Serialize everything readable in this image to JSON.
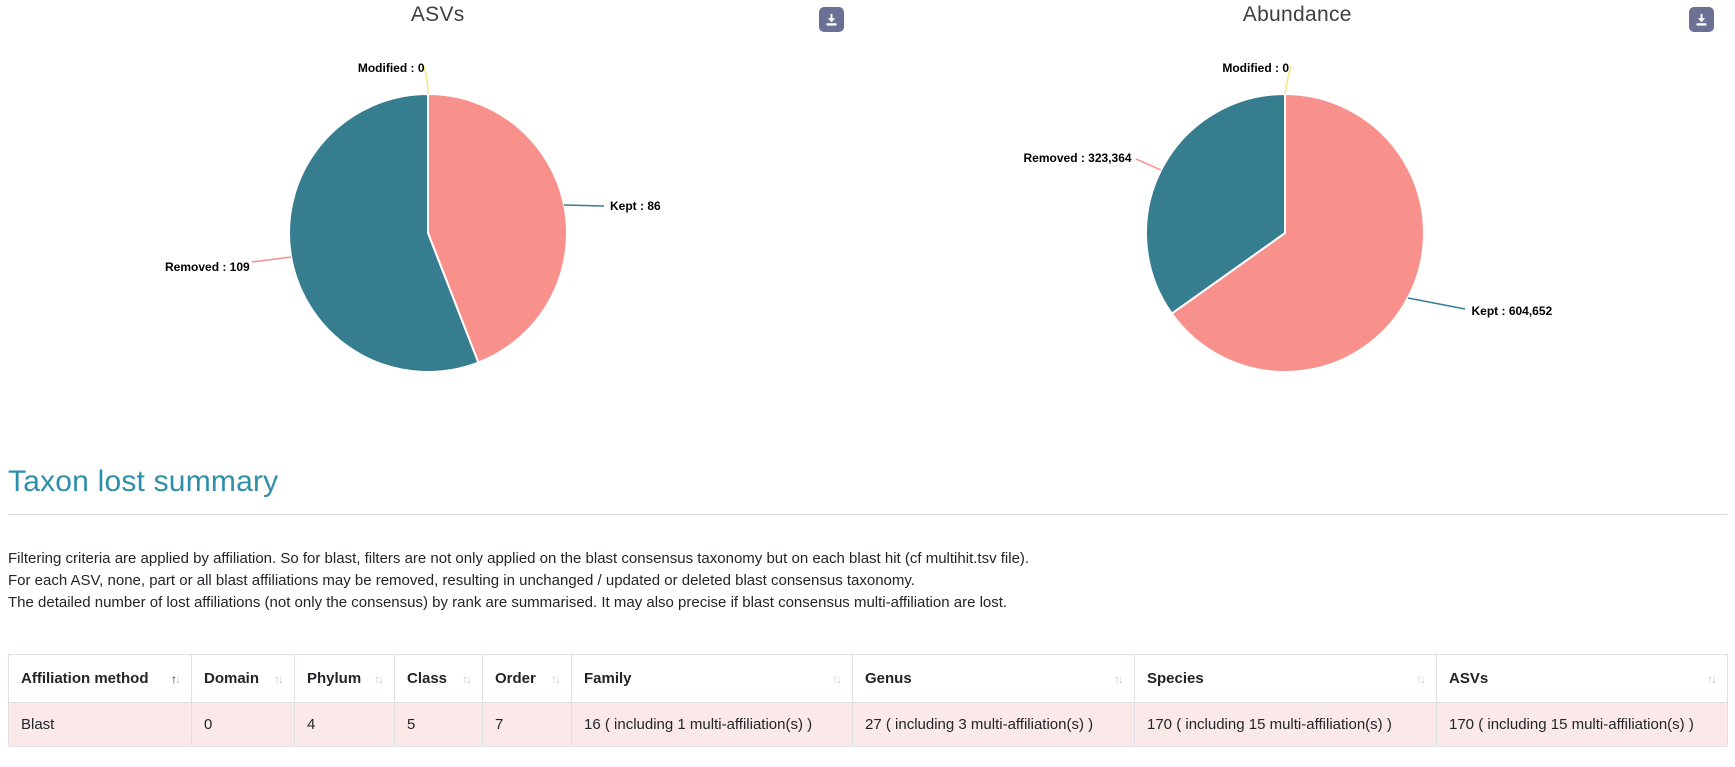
{
  "chart_data": [
    {
      "type": "pie",
      "title": "ASVs",
      "labels": [
        "Kept",
        "Removed",
        "Modified"
      ],
      "values": [
        86,
        109,
        0
      ],
      "display_labels": [
        "Kept : 86",
        "Removed : 109",
        "Modified : 0"
      ],
      "colors": [
        "#f8908c",
        "#377d90",
        "#f5e97e"
      ],
      "leader_line_colors": [
        "#377d90",
        "#f8908c",
        "#f5e97e"
      ],
      "start_angle": "top",
      "direction": "clockwise",
      "legend": "none"
    },
    {
      "type": "pie",
      "title": "Abundance",
      "labels": [
        "Kept",
        "Removed",
        "Modified"
      ],
      "values": [
        604652,
        323364,
        0
      ],
      "display_labels": [
        "Kept : 604,652",
        "Removed : 323,364",
        "Modified : 0"
      ],
      "colors": [
        "#f8908c",
        "#377d90",
        "#f5e97e"
      ],
      "leader_line_colors": [
        "#377d90",
        "#f8908c",
        "#f5e97e"
      ],
      "start_angle": "top",
      "direction": "clockwise",
      "legend": "none"
    }
  ],
  "toolbar": {
    "download_label": "download chart"
  },
  "section": {
    "title": "Taxon lost summary"
  },
  "description": {
    "lines": [
      "Filtering criteria are applied by affiliation. So for blast, filters are not only applied on the blast consensus taxonomy but on each blast hit (cf multihit.tsv file).",
      "For each ASV, none, part or all blast affiliations may be removed, resulting in unchanged / updated or deleted blast consensus taxonomy.",
      "The detailed number of lost affiliations (not only the consensus) by rank are summarised. It may also precise if blast consensus multi-affiliation are lost."
    ]
  },
  "table": {
    "columns": [
      {
        "label": "Affiliation method",
        "sort": "asc"
      },
      {
        "label": "Domain",
        "sort": "none"
      },
      {
        "label": "Phylum",
        "sort": "none"
      },
      {
        "label": "Class",
        "sort": "none"
      },
      {
        "label": "Order",
        "sort": "none"
      },
      {
        "label": "Family",
        "sort": "none"
      },
      {
        "label": "Genus",
        "sort": "none"
      },
      {
        "label": "Species",
        "sort": "none"
      },
      {
        "label": "ASVs",
        "sort": "none"
      }
    ],
    "rows": [
      [
        "Blast",
        "0",
        "4",
        "5",
        "7",
        "16 ( including 1 multi-affiliation(s) )",
        "27 ( including 3 multi-affiliation(s) )",
        "170 ( including 15 multi-affiliation(s) )",
        "170 ( including 15 multi-affiliation(s) )"
      ]
    ]
  },
  "theme": {
    "kept_color": "#f8908c",
    "removed_color": "#377d90",
    "modified_color": "#f5e97e",
    "heading_color": "#2e8fa9",
    "row_highlight": "#fbe9e9",
    "download_button": "#6b7094",
    "table_border": "#dee2e6"
  }
}
